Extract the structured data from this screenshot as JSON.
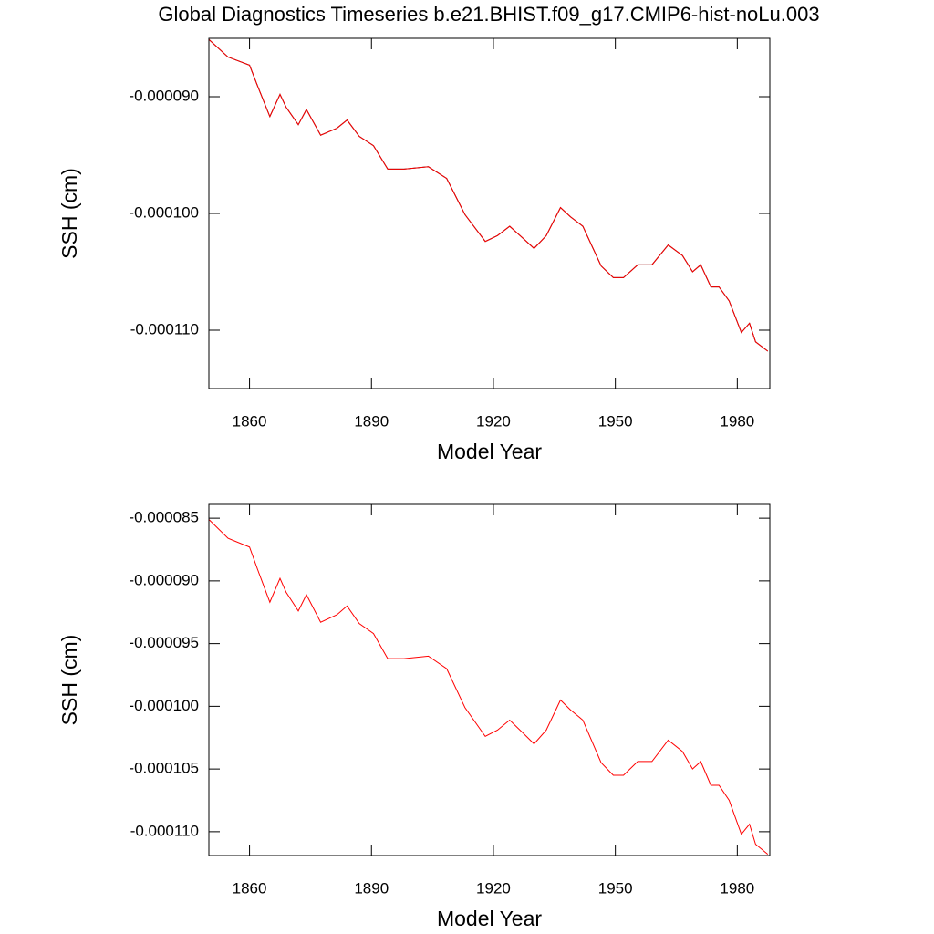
{
  "chart_data": [
    {
      "type": "line",
      "title": "Global Diagnostics Timeseries b.e21.BHIST.f09_g17.CMIP6-hist-noLu.003",
      "x_label": "Model Year",
      "y_label": "SSH (cm)",
      "x": [
        1850,
        1854.7,
        1860,
        1862,
        1865,
        1867.5,
        1869,
        1872,
        1874,
        1877.5,
        1881.5,
        1884,
        1887,
        1890.5,
        1894,
        1898,
        1904,
        1908.5,
        1913,
        1918,
        1921,
        1924,
        1927.5,
        1930,
        1933,
        1936.5,
        1939,
        1942,
        1946.5,
        1949.5,
        1952,
        1955.5,
        1959,
        1963,
        1966.5,
        1969,
        1971,
        1973.5,
        1975.5,
        1978,
        1981,
        1983,
        1984.5,
        1987.5
      ],
      "series": [
        {
          "color": "#000000",
          "values": [
            -8.51e-05,
            -8.66e-05,
            -8.73e-05,
            -8.91e-05,
            -9.17e-05,
            -8.98e-05,
            -9.09e-05,
            -9.24e-05,
            -9.11e-05,
            -9.33e-05,
            -9.27e-05,
            -9.2e-05,
            -9.34e-05,
            -9.42e-05,
            -9.62e-05,
            -9.62e-05,
            -9.6e-05,
            -9.7e-05,
            -0.0001001,
            -0.0001024,
            -0.0001019,
            -0.0001011,
            -0.0001022,
            -0.000103,
            -0.0001019,
            -9.95e-05,
            -0.0001003,
            -0.0001011,
            -0.0001045,
            -0.0001055,
            -0.0001055,
            -0.0001044,
            -0.0001044,
            -0.0001027,
            -0.0001036,
            -0.000105,
            -0.0001044,
            -0.0001063,
            -0.0001063,
            -0.0001075,
            -0.0001102,
            -0.0001094,
            -0.000111,
            -0.0001118
          ]
        },
        {
          "color": "#ff0000",
          "values": [
            -8.51e-05,
            -8.66e-05,
            -8.73e-05,
            -8.91e-05,
            -9.17e-05,
            -8.98e-05,
            -9.09e-05,
            -9.24e-05,
            -9.11e-05,
            -9.33e-05,
            -9.27e-05,
            -9.2e-05,
            -9.34e-05,
            -9.42e-05,
            -9.62e-05,
            -9.62e-05,
            -9.6e-05,
            -9.7e-05,
            -0.0001001,
            -0.0001024,
            -0.0001019,
            -0.0001011,
            -0.0001022,
            -0.000103,
            -0.0001019,
            -9.95e-05,
            -0.0001003,
            -0.0001011,
            -0.0001045,
            -0.0001055,
            -0.0001055,
            -0.0001044,
            -0.0001044,
            -0.0001027,
            -0.0001036,
            -0.000105,
            -0.0001044,
            -0.0001063,
            -0.0001063,
            -0.0001075,
            -0.0001102,
            -0.0001094,
            -0.000111,
            -0.0001118
          ]
        }
      ],
      "xlim": [
        1850,
        1988
      ],
      "xticks": [
        1860,
        1890,
        1920,
        1950,
        1980
      ],
      "ylim": [
        -0.000115,
        -8.5e-05
      ],
      "yticks": [
        {
          "value": -9e-05,
          "label": "-0.000090"
        },
        {
          "value": -0.0001,
          "label": "-0.000100"
        },
        {
          "value": -0.00011,
          "label": "-0.000110"
        }
      ]
    },
    {
      "type": "line",
      "x_label": "Model Year",
      "y_label": "SSH (cm)",
      "x": [
        1850,
        1854.7,
        1860,
        1862,
        1865,
        1867.5,
        1869,
        1872,
        1874,
        1877.5,
        1881.5,
        1884,
        1887,
        1890.5,
        1894,
        1898,
        1904,
        1908.5,
        1913,
        1918,
        1921,
        1924,
        1927.5,
        1930,
        1933,
        1936.5,
        1939,
        1942,
        1946.5,
        1949.5,
        1952,
        1955.5,
        1959,
        1963,
        1966.5,
        1969,
        1971,
        1973.5,
        1975.5,
        1978,
        1981,
        1983,
        1984.5,
        1987.5
      ],
      "series": [
        {
          "color": "#ff0000",
          "values": [
            -8.51e-05,
            -8.66e-05,
            -8.73e-05,
            -8.91e-05,
            -9.17e-05,
            -8.98e-05,
            -9.09e-05,
            -9.24e-05,
            -9.11e-05,
            -9.33e-05,
            -9.27e-05,
            -9.2e-05,
            -9.34e-05,
            -9.42e-05,
            -9.62e-05,
            -9.62e-05,
            -9.6e-05,
            -9.7e-05,
            -0.0001001,
            -0.0001024,
            -0.0001019,
            -0.0001011,
            -0.0001022,
            -0.000103,
            -0.0001019,
            -9.95e-05,
            -0.0001003,
            -0.0001011,
            -0.0001045,
            -0.0001055,
            -0.0001055,
            -0.0001044,
            -0.0001044,
            -0.0001027,
            -0.0001036,
            -0.000105,
            -0.0001044,
            -0.0001063,
            -0.0001063,
            -0.0001075,
            -0.0001102,
            -0.0001094,
            -0.000111,
            -0.0001118
          ]
        }
      ],
      "xlim": [
        1850,
        1988
      ],
      "xticks": [
        1860,
        1890,
        1920,
        1950,
        1980
      ],
      "ylim": [
        -0.0001119,
        -8.39e-05
      ],
      "yticks": [
        {
          "value": -8.5e-05,
          "label": "-0.000085"
        },
        {
          "value": -9e-05,
          "label": "-0.000090"
        },
        {
          "value": -9.5e-05,
          "label": "-0.000095"
        },
        {
          "value": -0.0001,
          "label": "-0.000100"
        },
        {
          "value": -0.000105,
          "label": "-0.000105"
        },
        {
          "value": -0.00011,
          "label": "-0.000110"
        }
      ]
    }
  ]
}
